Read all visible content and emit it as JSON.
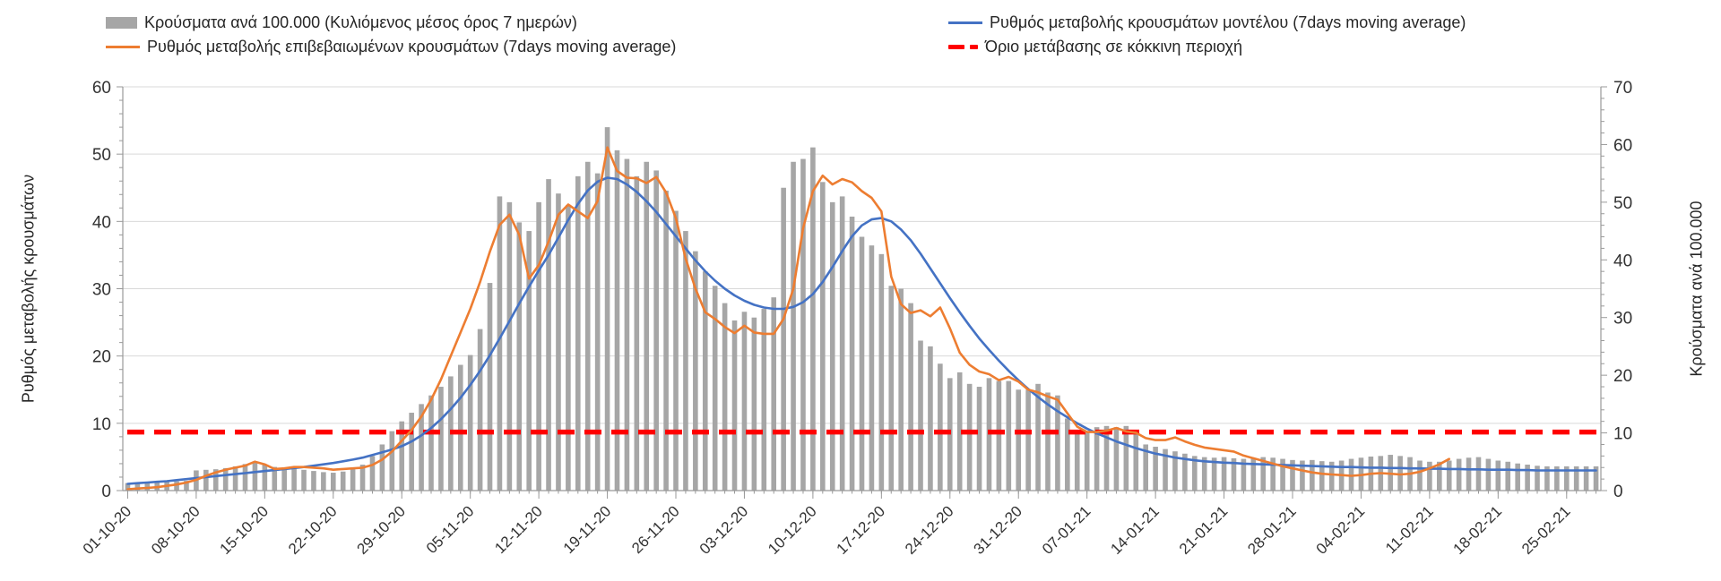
{
  "legend": {
    "items": [
      {
        "label": "Κρούσματα ανά 100.000 (Κυλιόμενος μέσος όρος 7 ημερών)",
        "type": "bar",
        "color": "#a6a6a6"
      },
      {
        "label": "Ρυθμός μεταβολής επιβεβαιωμένων κρουσμάτων (7days moving average)",
        "type": "line",
        "color": "#ED7D31"
      },
      {
        "label": "Ρυθμός μεταβολής κρουσμάτων μοντέλου (7days moving average)",
        "type": "line",
        "color": "#4472C4"
      },
      {
        "label": "Όριο μετάβασης σε κόκκινη περιοχή",
        "type": "dash",
        "color": "#FF0000"
      }
    ]
  },
  "chart_data": {
    "type": "combo-bar-line",
    "days": 151,
    "start_date": "01-10-20",
    "end_date": "28-02-21",
    "x_tick_labels": [
      "01-10-20",
      "08-10-20",
      "15-10-20",
      "22-10-20",
      "29-10-20",
      "05-11-20",
      "12-11-20",
      "19-11-20",
      "26-11-20",
      "03-12-20",
      "10-12-20",
      "17-12-20",
      "24-12-20",
      "31-12-20",
      "07-01-21",
      "14-01-21",
      "21-01-21",
      "28-01-21",
      "04-02-21",
      "11-02-21",
      "18-02-21",
      "25-02-21"
    ],
    "left_axis": {
      "title": "Ρυθμός μεταβολής κρουσμάτων",
      "min": 0,
      "max": 60,
      "step": 10,
      "minor_step": 2,
      "tick_labels": [
        0,
        10,
        20,
        30,
        40,
        50,
        60
      ]
    },
    "right_axis": {
      "title": "Κρούσματα ανά 100.000",
      "min": 0,
      "max": 70,
      "step": 10,
      "minor_step": 2,
      "tick_labels": [
        0,
        10,
        20,
        30,
        40,
        50,
        60,
        70
      ]
    },
    "grid": {
      "color": "#d9d9d9",
      "horizontal_only": true
    },
    "axis_line_color": "#999999",
    "text_color": "#333333",
    "series": [
      {
        "id": "cases-per-100k-bars",
        "name": "Κρούσματα ανά 100.000 (Κυλιόμενος μέσος όρος 7 ημερών)",
        "type": "bar",
        "axis": "right",
        "color": "#a6a6a6",
        "values": [
          1.3,
          1.3,
          1.4,
          1.4,
          1.5,
          1.6,
          1.7,
          3.5,
          3.6,
          3.7,
          3.9,
          4.2,
          4.6,
          5.0,
          4.5,
          4.1,
          3.9,
          3.8,
          3.6,
          3.4,
          3.2,
          3.1,
          3.3,
          3.7,
          4.5,
          6.0,
          8.0,
          10.3,
          12.0,
          13.5,
          15.0,
          16.5,
          18.0,
          19.8,
          21.8,
          23.5,
          28.0,
          36.0,
          51.0,
          50.0,
          46.5,
          45.0,
          50.0,
          54.0,
          51.5,
          49.5,
          54.5,
          57.0,
          55.0,
          63.0,
          59.0,
          57.5,
          54.5,
          57.0,
          55.5,
          52.0,
          48.5,
          45.0,
          41.5,
          38.0,
          35.5,
          32.5,
          29.5,
          31.0,
          30.0,
          31.5,
          33.5,
          52.5,
          57.0,
          57.5,
          59.5,
          53.5,
          50.0,
          51.0,
          47.5,
          44.0,
          42.5,
          41.0,
          35.5,
          35.0,
          32.5,
          26.0,
          25.0,
          22.0,
          19.5,
          20.5,
          18.5,
          18.0,
          19.5,
          19.0,
          19.0,
          17.5,
          17.5,
          18.5,
          17.0,
          16.5,
          12.5,
          10.0,
          10.0,
          11.0,
          11.2,
          11.0,
          11.2,
          10.3,
          8.0,
          7.6,
          7.2,
          6.8,
          6.4,
          6.0,
          5.8,
          5.7,
          5.8,
          5.6,
          5.5,
          5.6,
          5.8,
          5.7,
          5.5,
          5.3,
          5.2,
          5.3,
          5.1,
          5.0,
          5.2,
          5.5,
          5.7,
          5.9,
          6.0,
          6.2,
          6.0,
          5.8,
          5.2,
          5.0,
          5.0,
          5.2,
          5.5,
          5.7,
          5.8,
          5.5,
          5.2,
          5.0,
          4.7,
          4.5,
          4.3,
          4.2,
          4.2,
          4.2,
          4.2,
          4.2,
          4.2
        ]
      },
      {
        "id": "confirmed-rate-line",
        "name": "Ρυθμός μεταβολής επιβεβαιωμένων κρουσμάτων (7days moving average)",
        "type": "line",
        "axis": "left",
        "color": "#ED7D31",
        "values": [
          0.2,
          0.3,
          0.4,
          0.5,
          0.7,
          0.9,
          1.2,
          1.6,
          2.2,
          2.7,
          3.1,
          3.4,
          3.7,
          4.3,
          3.9,
          3.2,
          3.3,
          3.5,
          3.5,
          3.4,
          3.3,
          3.1,
          3.2,
          3.3,
          3.4,
          3.8,
          4.6,
          5.8,
          7.4,
          9.0,
          11.0,
          13.5,
          16.5,
          20.0,
          23.5,
          27.0,
          31.0,
          35.5,
          39.5,
          41.0,
          38.0,
          31.5,
          33.5,
          37.0,
          41.0,
          42.5,
          41.5,
          40.5,
          43.0,
          51.0,
          47.5,
          46.5,
          46.4,
          45.7,
          46.6,
          44.3,
          40.5,
          34.5,
          30.0,
          26.5,
          25.5,
          24.3,
          23.4,
          24.5,
          23.5,
          23.3,
          23.3,
          25.5,
          30.0,
          39.0,
          44.5,
          46.8,
          45.5,
          46.3,
          45.8,
          44.5,
          43.5,
          41.5,
          31.8,
          27.7,
          26.4,
          26.8,
          25.9,
          27.2,
          24.1,
          20.5,
          18.7,
          17.7,
          17.3,
          16.4,
          16.9,
          16.2,
          15.0,
          14.6,
          14.0,
          13.5,
          11.5,
          9.5,
          8.7,
          8.7,
          8.9,
          9.3,
          8.8,
          8.6,
          7.8,
          7.5,
          7.5,
          7.9,
          7.3,
          6.8,
          6.4,
          6.2,
          6.0,
          5.8,
          5.2,
          4.8,
          4.4,
          4.0,
          3.6,
          3.3,
          3.0,
          2.7,
          2.5,
          2.4,
          2.3,
          2.2,
          2.3,
          2.5,
          2.6,
          2.5,
          2.4,
          2.5,
          2.8,
          3.3,
          3.9,
          4.7
        ]
      },
      {
        "id": "model-rate-line",
        "name": "Ρυθμός μεταβολής κρουσμάτων μοντέλου (7days moving average)",
        "type": "line",
        "axis": "left",
        "color": "#4472C4",
        "values": [
          1.0,
          1.1,
          1.2,
          1.3,
          1.4,
          1.55,
          1.7,
          1.85,
          2.0,
          2.15,
          2.3,
          2.45,
          2.6,
          2.75,
          2.9,
          3.05,
          3.2,
          3.35,
          3.5,
          3.7,
          3.9,
          4.1,
          4.35,
          4.6,
          4.9,
          5.3,
          5.7,
          6.1,
          6.6,
          7.3,
          8.2,
          9.3,
          10.6,
          12.1,
          13.8,
          15.7,
          17.8,
          20.1,
          22.6,
          25.2,
          27.8,
          30.3,
          32.7,
          35.0,
          37.6,
          40.2,
          42.6,
          44.6,
          45.9,
          46.5,
          46.3,
          45.5,
          44.4,
          43.0,
          41.4,
          39.6,
          37.8,
          36.0,
          34.2,
          32.6,
          31.2,
          30.0,
          29.0,
          28.2,
          27.6,
          27.2,
          27.0,
          27.0,
          27.3,
          28.0,
          29.2,
          31.0,
          33.2,
          35.6,
          37.8,
          39.4,
          40.3,
          40.5,
          40.0,
          38.8,
          37.2,
          35.2,
          33.0,
          30.8,
          28.6,
          26.5,
          24.5,
          22.6,
          20.9,
          19.3,
          17.8,
          16.4,
          15.1,
          13.9,
          12.8,
          11.8,
          10.9,
          10.0,
          9.2,
          8.5,
          7.9,
          7.3,
          6.8,
          6.3,
          5.9,
          5.5,
          5.2,
          4.9,
          4.7,
          4.5,
          4.35,
          4.25,
          4.15,
          4.1,
          4.0,
          3.95,
          3.9,
          3.85,
          3.8,
          3.75,
          3.7,
          3.65,
          3.6,
          3.55,
          3.5,
          3.5,
          3.45,
          3.4,
          3.4,
          3.35,
          3.35,
          3.3,
          3.3,
          3.25,
          3.25,
          3.2,
          3.2,
          3.15,
          3.15,
          3.1,
          3.1,
          3.1,
          3.05,
          3.05,
          3.0,
          3.0,
          3.0,
          3.0,
          3.0,
          3.0,
          3.0
        ]
      },
      {
        "id": "red-zone-threshold",
        "name": "Όριο μετάβασης σε κόκκινη περιοχή",
        "type": "threshold",
        "axis": "left",
        "color": "#FF0000",
        "value": 8.7
      }
    ]
  }
}
